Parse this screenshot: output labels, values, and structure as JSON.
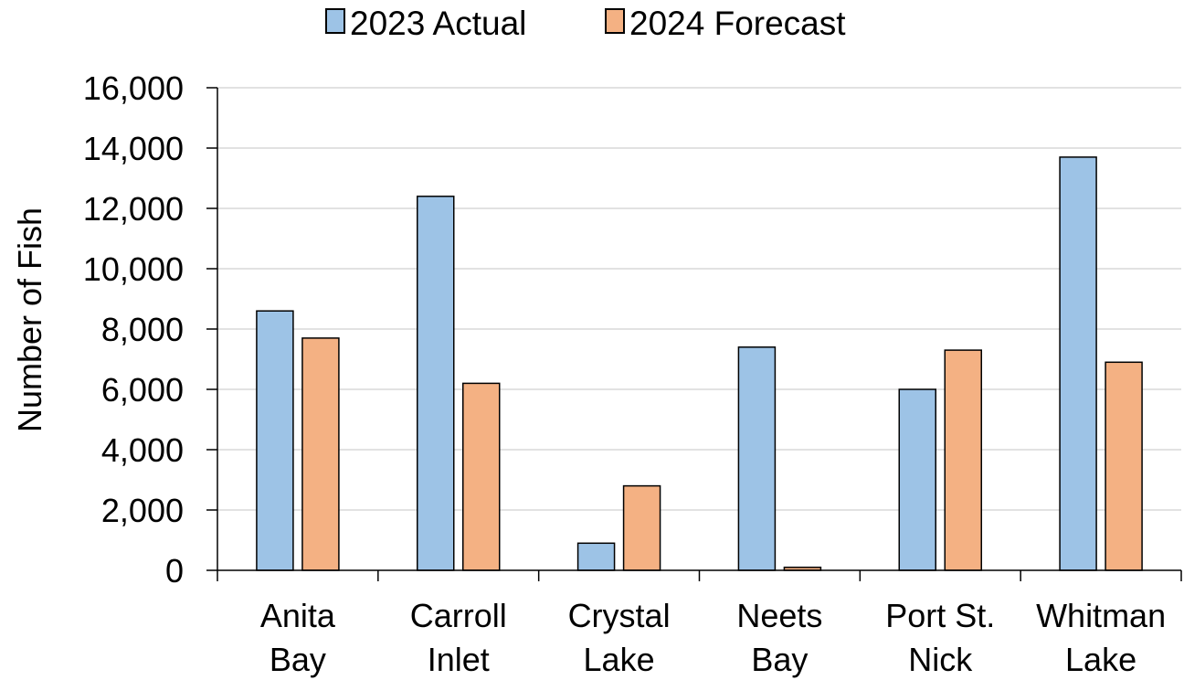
{
  "chart_data": {
    "type": "bar",
    "categories": [
      [
        "Anita",
        "Bay"
      ],
      [
        "Carroll",
        "Inlet"
      ],
      [
        "Crystal",
        "Lake"
      ],
      [
        "Neets",
        "Bay"
      ],
      [
        "Port St.",
        "Nick"
      ],
      [
        "Whitman",
        "Lake"
      ]
    ],
    "series": [
      {
        "name": "2023 Actual",
        "color": "#9DC3E6",
        "values": [
          8600,
          12400,
          900,
          7400,
          6000,
          13700
        ]
      },
      {
        "name": "2024 Forecast",
        "color": "#F4B183",
        "values": [
          7700,
          6200,
          2800,
          100,
          7300,
          6900
        ]
      }
    ],
    "ylabel": "Number of Fish",
    "ylim": [
      0,
      16000
    ],
    "yticks": [
      0,
      2000,
      4000,
      6000,
      8000,
      10000,
      12000,
      14000,
      16000
    ],
    "ytick_labels": [
      "0",
      "2,000",
      "4,000",
      "6,000",
      "8,000",
      "10,000",
      "12,000",
      "14,000",
      "16,000"
    ],
    "grid": true,
    "legend_position": "top-center",
    "gridline_color": "#D9D9D9",
    "axis_color": "#000000"
  }
}
